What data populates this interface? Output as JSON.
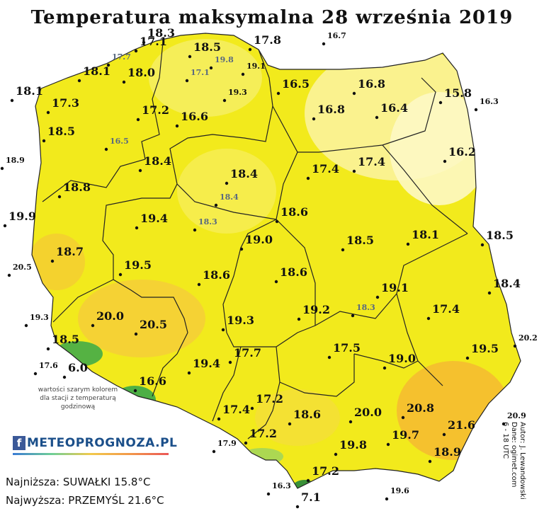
{
  "title": "Temperatura maksymalna 28 września 2019",
  "note": "wartości szarym kolorem dla stacji z temperaturą godzinową",
  "logo": {
    "fb": "f",
    "name": "METEOPROGNOZA.PL"
  },
  "min_label": "Najniższa: SUWAŁKI 15.8°C",
  "max_label": "Najwyższa: PRZEMYŚL 21.6°C",
  "author": [
    "Autor: J. Lewandowski",
    "Dane: ogimet.com",
    "6 - 18 UTC"
  ],
  "colors": {
    "land_base": "#f2ea1c",
    "land_light": "#fbf6a0",
    "warm": "#f5b733",
    "mountain": "#3aa84a",
    "outside": "#ffffff"
  },
  "stations": [
    {
      "v": "18.3",
      "s": "b"
    },
    {
      "v": "17.1",
      "s": "b"
    },
    {
      "v": "18.5",
      "s": "b"
    },
    {
      "v": "17.8",
      "s": "b"
    },
    {
      "v": "16.7",
      "s": "s"
    },
    {
      "v": "17.7",
      "s": "g"
    },
    {
      "v": "19.8",
      "s": "g"
    },
    {
      "v": "18.1",
      "s": "b"
    },
    {
      "v": "18.0",
      "s": "b"
    },
    {
      "v": "17.1",
      "s": "g"
    },
    {
      "v": "19.1",
      "s": "s"
    },
    {
      "v": "18.1",
      "s": "b"
    },
    {
      "v": "19.3",
      "s": "s"
    },
    {
      "v": "16.5",
      "s": "b"
    },
    {
      "v": "16.8",
      "s": "b"
    },
    {
      "v": "15.8",
      "s": "b"
    },
    {
      "v": "16.3",
      "s": "s"
    },
    {
      "v": "17.3",
      "s": "b"
    },
    {
      "v": "17.2",
      "s": "b"
    },
    {
      "v": "16.6",
      "s": "b"
    },
    {
      "v": "16.8",
      "s": "b"
    },
    {
      "v": "16.4",
      "s": "b"
    },
    {
      "v": "18.5",
      "s": "b"
    },
    {
      "v": "16.5",
      "s": "g"
    },
    {
      "v": "18.9",
      "s": "s"
    },
    {
      "v": "18.4",
      "s": "b"
    },
    {
      "v": "18.4",
      "s": "b"
    },
    {
      "v": "17.4",
      "s": "b"
    },
    {
      "v": "17.4",
      "s": "b"
    },
    {
      "v": "16.2",
      "s": "b"
    },
    {
      "v": "18.8",
      "s": "b"
    },
    {
      "v": "18.4",
      "s": "g"
    },
    {
      "v": "19.9",
      "s": "b"
    },
    {
      "v": "19.4",
      "s": "b"
    },
    {
      "v": "18.3",
      "s": "g"
    },
    {
      "v": "18.6",
      "s": "b"
    },
    {
      "v": "18.5",
      "s": "b"
    },
    {
      "v": "18.1",
      "s": "b"
    },
    {
      "v": "19.0",
      "s": "b"
    },
    {
      "v": "18.5",
      "s": "b"
    },
    {
      "v": "18.7",
      "s": "b"
    },
    {
      "v": "20.5",
      "s": "s"
    },
    {
      "v": "19.5",
      "s": "b"
    },
    {
      "v": "18.6",
      "s": "b"
    },
    {
      "v": "18.6",
      "s": "b"
    },
    {
      "v": "19.1",
      "s": "b"
    },
    {
      "v": "18.4",
      "s": "b"
    },
    {
      "v": "19.3",
      "s": "s"
    },
    {
      "v": "20.0",
      "s": "b"
    },
    {
      "v": "20.5",
      "s": "b"
    },
    {
      "v": "19.3",
      "s": "b"
    },
    {
      "v": "19.2",
      "s": "b"
    },
    {
      "v": "18.3",
      "s": "g"
    },
    {
      "v": "17.4",
      "s": "b"
    },
    {
      "v": "20.2",
      "s": "s"
    },
    {
      "v": "18.5",
      "s": "b"
    },
    {
      "v": "17.6",
      "s": "s"
    },
    {
      "v": "6.0",
      "s": "b"
    },
    {
      "v": "17.7",
      "s": "b"
    },
    {
      "v": "17.5",
      "s": "b"
    },
    {
      "v": "19.0",
      "s": "b"
    },
    {
      "v": "19.5",
      "s": "b"
    },
    {
      "v": "19.4",
      "s": "b"
    },
    {
      "v": "16.6",
      "s": "b"
    },
    {
      "v": "17.2",
      "s": "b"
    },
    {
      "v": "17.4",
      "s": "b"
    },
    {
      "v": "18.6",
      "s": "b"
    },
    {
      "v": "20.0",
      "s": "b"
    },
    {
      "v": "20.8",
      "s": "b"
    },
    {
      "v": "21.6",
      "s": "b"
    },
    {
      "v": "20.9",
      "s": "s"
    },
    {
      "v": "17.2",
      "s": "b"
    },
    {
      "v": "19.7",
      "s": "b"
    },
    {
      "v": "17.9",
      "s": "s"
    },
    {
      "v": "19.8",
      "s": "b"
    },
    {
      "v": "18.9",
      "s": "b"
    },
    {
      "v": "16.3",
      "s": "s"
    },
    {
      "v": "17.2",
      "s": "b"
    },
    {
      "v": "7.1",
      "s": "b"
    },
    {
      "v": "19.6",
      "s": "s"
    }
  ]
}
